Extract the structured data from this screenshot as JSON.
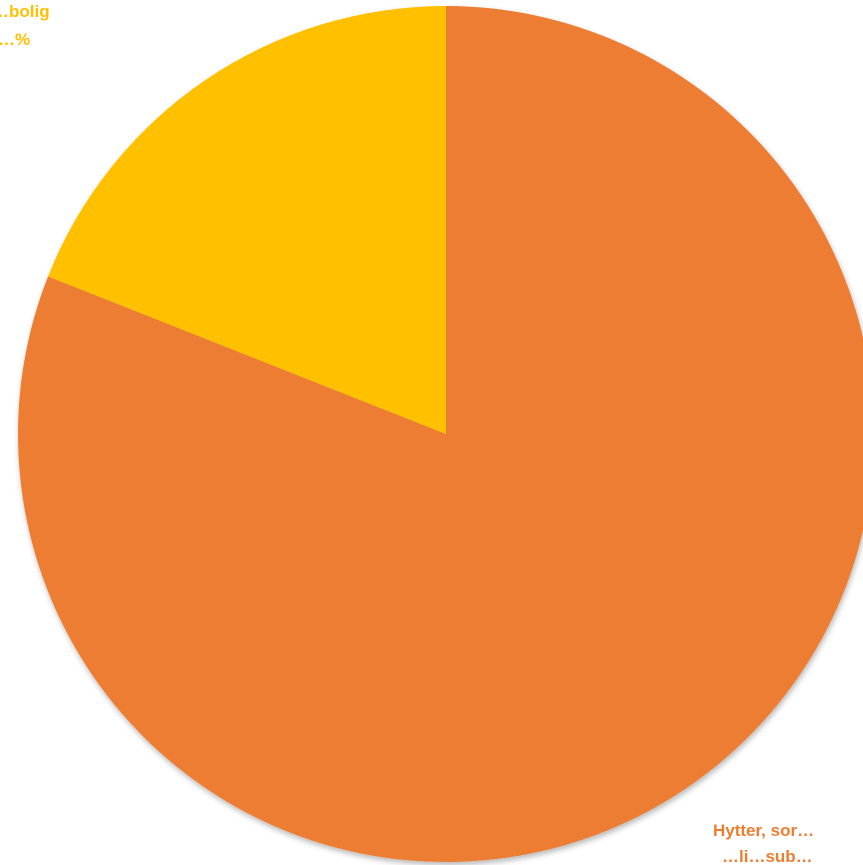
{
  "chart_data": {
    "type": "pie",
    "slices": [
      {
        "label": "Hytter, sor…",
        "label_line2": "…li…sub…",
        "value": 81,
        "color": "#ED7D31"
      },
      {
        "label": "…bolig",
        "label_line2": "…%",
        "value": 19,
        "color": "#FFC000"
      }
    ],
    "start_angle": "12 o'clock",
    "direction": "clockwise",
    "legend": "none"
  }
}
